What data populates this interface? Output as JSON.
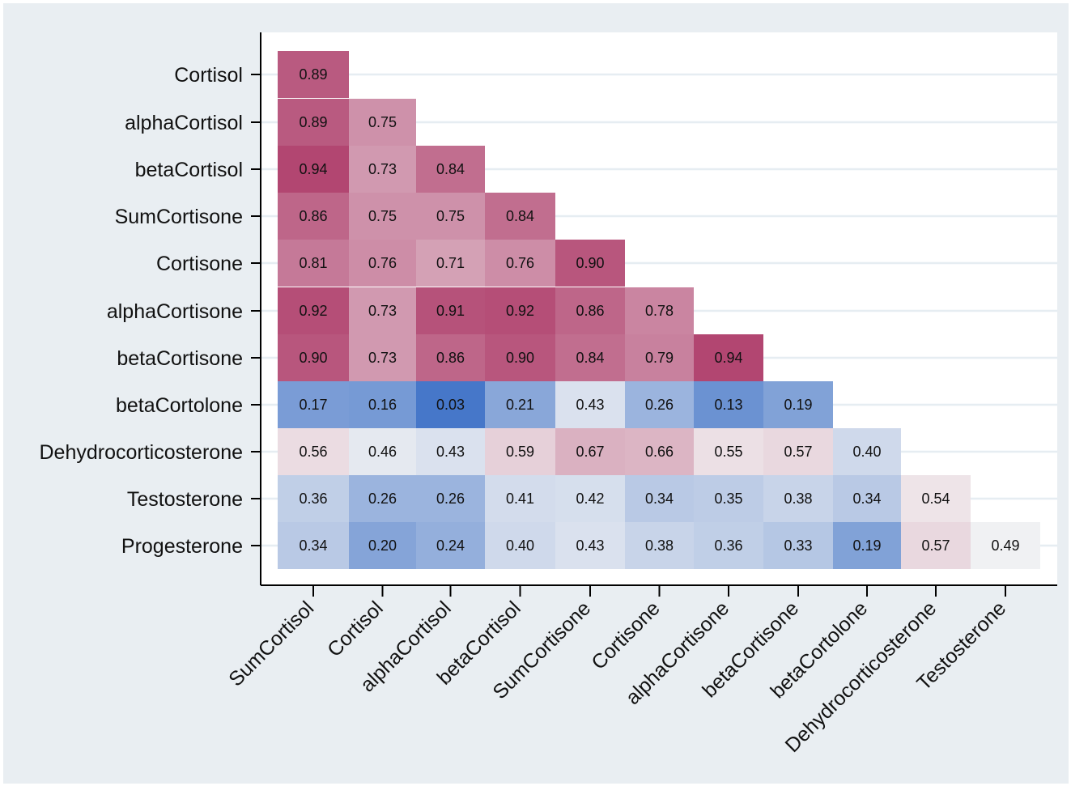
{
  "chart_data": {
    "type": "heatmap",
    "rows": [
      "Cortisol",
      "alphaCortisol",
      "betaCortisol",
      "SumCortisone",
      "Cortisone",
      "alphaCortisone",
      "betaCortisone",
      "betaCortolone",
      "Dehydrocorticosterone",
      "Testosterone",
      "Progesterone"
    ],
    "columns": [
      "SumCortisol",
      "Cortisol",
      "alphaCortisol",
      "betaCortisol",
      "SumCortisone",
      "Cortisone",
      "alphaCortisone",
      "betaCortisone",
      "betaCortolone",
      "Dehydrocorticosterone",
      "Testosterone"
    ],
    "values": [
      [
        "0.89"
      ],
      [
        "0.89",
        "0.75"
      ],
      [
        "0.94",
        "0.73",
        "0.84"
      ],
      [
        "0.86",
        "0.75",
        "0.75",
        "0.84"
      ],
      [
        "0.81",
        "0.76",
        "0.71",
        "0.76",
        "0.90"
      ],
      [
        "0.92",
        "0.73",
        "0.91",
        "0.92",
        "0.86",
        "0.78"
      ],
      [
        "0.90",
        "0.73",
        "0.86",
        "0.90",
        "0.84",
        "0.79",
        "0.94"
      ],
      [
        "0.17",
        "0.16",
        "0.03",
        "0.21",
        "0.43",
        "0.26",
        "0.13",
        "0.19"
      ],
      [
        "0.56",
        "0.46",
        "0.43",
        "0.59",
        "0.67",
        "0.66",
        "0.55",
        "0.57",
        "0.40"
      ],
      [
        "0.36",
        "0.26",
        "0.26",
        "0.41",
        "0.42",
        "0.34",
        "0.35",
        "0.38",
        "0.34",
        "0.54"
      ],
      [
        "0.34",
        "0.20",
        "0.24",
        "0.40",
        "0.43",
        "0.38",
        "0.36",
        "0.33",
        "0.19",
        "0.57",
        "0.49"
      ]
    ],
    "title": "",
    "xlabel": "",
    "ylabel": "",
    "grid": true,
    "colors": {
      "low": "#3b6fc6",
      "mid": "#f4f4f4",
      "high": "#b0426e",
      "outer_background": "#e9eef2",
      "plot_background": "#ffffff",
      "grid": "#e6edf2"
    }
  }
}
